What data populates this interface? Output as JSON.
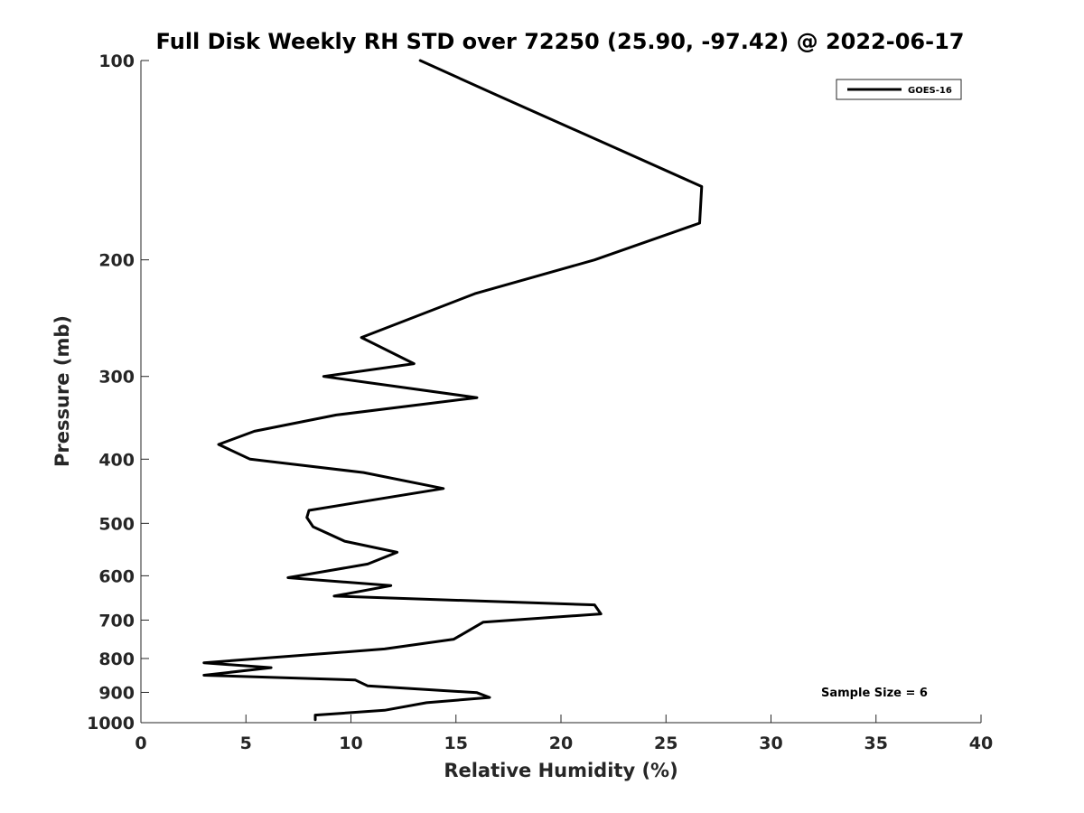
{
  "chart_data": {
    "type": "line",
    "title": "Full Disk Weekly RH STD over 72250 (25.90, -97.42) @ 2022-06-17",
    "xlabel": "Relative Humidity (%)",
    "ylabel": "Pressure (mb)",
    "xlim": [
      0,
      40
    ],
    "ylim": [
      100,
      1000
    ],
    "y_scale": "log",
    "y_reversed": true,
    "x_ticks": [
      "0",
      "5",
      "10",
      "15",
      "20",
      "25",
      "30",
      "35",
      "40"
    ],
    "y_ticks": [
      "100",
      "200",
      "300",
      "400",
      "500",
      "600",
      "700",
      "800",
      "900",
      "1000"
    ],
    "grid": false,
    "legend": {
      "position": "top-right",
      "entries": [
        "GOES-16"
      ]
    },
    "annotation": "Sample Size = 6",
    "series": [
      {
        "name": "GOES-16",
        "color": "#000000",
        "x": [
          13.3,
          17.0,
          22.7,
          26.7,
          26.6,
          21.6,
          15.9,
          10.5,
          13.0,
          8.7,
          16.0,
          9.3,
          5.4,
          3.7,
          5.2,
          10.6,
          14.4,
          8.0,
          7.9,
          8.2,
          9.7,
          12.2,
          10.8,
          7.0,
          11.9,
          9.2,
          21.6,
          21.9,
          16.3,
          14.9,
          11.6,
          3.0,
          6.2,
          3.0,
          10.2,
          10.8,
          16.0,
          16.6,
          13.6,
          11.6,
          8.3,
          8.3
        ],
        "y": [
          100,
          113,
          136,
          155,
          176,
          200,
          225,
          262,
          287,
          300,
          323,
          343,
          363,
          380,
          400,
          419,
          443,
          478,
          490,
          506,
          532,
          553,
          576,
          604,
          621,
          644,
          664,
          685,
          705,
          748,
          774,
          812,
          826,
          848,
          862,
          880,
          901,
          916,
          933,
          958,
          974,
          990
        ]
      }
    ]
  }
}
